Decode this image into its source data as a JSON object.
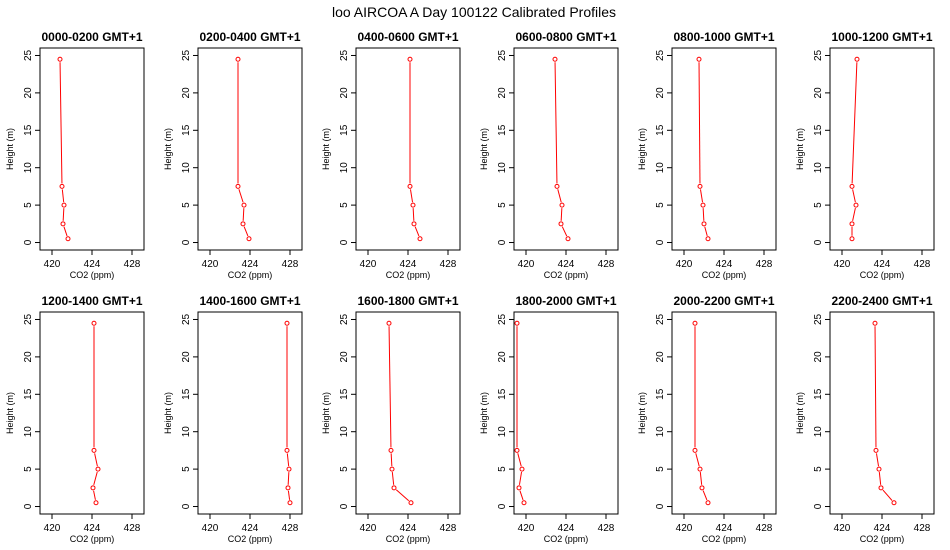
{
  "figure": {
    "title": "loo AIRCOA A  Day 100122  Calibrated Profiles"
  },
  "chart_data": {
    "type": "line",
    "layout": "2 rows x 6 columns",
    "xlabel": "CO2 (ppm)",
    "ylabel": "Height (m)",
    "xlim": [
      418.8,
      429.2
    ],
    "ylim": [
      -1,
      26
    ],
    "xticks": [
      420,
      424,
      428
    ],
    "yticks": [
      0,
      5,
      10,
      15,
      20,
      25
    ],
    "line_color": "#ff0000",
    "marker": "open-circle",
    "heights": [
      24.5,
      7.5,
      5,
      2.5,
      0.5
    ],
    "panels": [
      {
        "title": "0000-0200 GMT+1",
        "co2": [
          420.8,
          421.0,
          421.2,
          421.1,
          421.6
        ]
      },
      {
        "title": "0200-0400 GMT+1",
        "co2": [
          422.8,
          422.8,
          423.4,
          423.3,
          423.9
        ]
      },
      {
        "title": "0400-0600 GMT+1",
        "co2": [
          424.2,
          424.2,
          424.5,
          424.6,
          425.2
        ]
      },
      {
        "title": "0600-0800 GMT+1",
        "co2": [
          422.9,
          423.1,
          423.6,
          423.5,
          424.2
        ]
      },
      {
        "title": "0800-1000 GMT+1",
        "co2": [
          421.5,
          421.6,
          421.9,
          422.0,
          422.4
        ]
      },
      {
        "title": "1000-1200 GMT+1",
        "co2": [
          421.5,
          421.0,
          421.4,
          421.0,
          421.0
        ]
      },
      {
        "title": "1200-1400 GMT+1",
        "co2": [
          424.2,
          424.2,
          424.6,
          424.1,
          424.4
        ]
      },
      {
        "title": "1400-1600 GMT+1",
        "co2": [
          427.7,
          427.7,
          427.9,
          427.8,
          428.0
        ]
      },
      {
        "title": "1600-1800 GMT+1",
        "co2": [
          422.1,
          422.3,
          422.4,
          422.6,
          424.3
        ]
      },
      {
        "title": "1800-2000 GMT+1",
        "co2": [
          419.1,
          419.1,
          419.6,
          419.3,
          419.8
        ]
      },
      {
        "title": "2000-2200 GMT+1",
        "co2": [
          421.1,
          421.1,
          421.6,
          421.8,
          422.4
        ]
      },
      {
        "title": "2200-2400 GMT+1",
        "co2": [
          423.3,
          423.4,
          423.7,
          423.9,
          425.2
        ]
      }
    ]
  }
}
